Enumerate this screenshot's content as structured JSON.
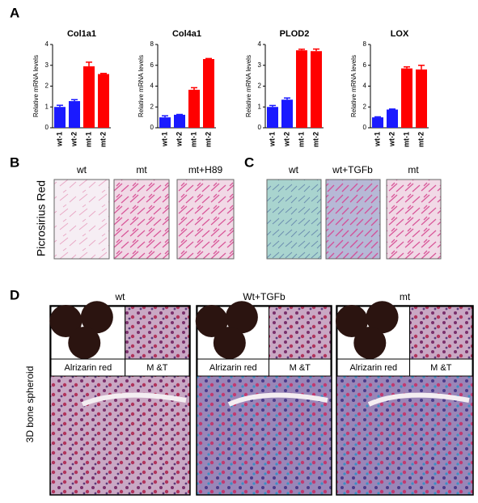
{
  "chart_data": [
    {
      "type": "bar",
      "title": "Col1a1",
      "y_label": "Relative mRNA levels",
      "categories": [
        "wt-1",
        "wt-2",
        "mt-1",
        "mt-2"
      ],
      "values": [
        1.0,
        1.28,
        2.95,
        2.58
      ],
      "errors": [
        0.08,
        0.07,
        0.2,
        0.03
      ],
      "colors": [
        "#1a1aff",
        "#1a1aff",
        "#ff0000",
        "#ff0000"
      ],
      "ylim": [
        0,
        4
      ],
      "yticks": [
        0,
        1,
        2,
        3,
        4
      ]
    },
    {
      "type": "bar",
      "title": "Col4a1",
      "y_label": "Relative mRNA levels",
      "categories": [
        "wt-1",
        "wt-2",
        "mt-1",
        "mt-2"
      ],
      "values": [
        1.0,
        1.25,
        3.65,
        6.6
      ],
      "errors": [
        0.15,
        0.03,
        0.2,
        0.05
      ],
      "colors": [
        "#1a1aff",
        "#1a1aff",
        "#ff0000",
        "#ff0000"
      ],
      "ylim": [
        0,
        8
      ],
      "yticks": [
        0,
        2,
        4,
        6,
        8
      ]
    },
    {
      "type": "bar",
      "title": "PLOD2",
      "y_label": "Relative mRNA levels",
      "categories": [
        "wt-1",
        "wt-2",
        "mt-1",
        "mt-2"
      ],
      "values": [
        1.0,
        1.35,
        3.72,
        3.68
      ],
      "errors": [
        0.07,
        0.08,
        0.05,
        0.1
      ],
      "colors": [
        "#1a1aff",
        "#1a1aff",
        "#ff0000",
        "#ff0000"
      ],
      "ylim": [
        0,
        4
      ],
      "yticks": [
        0,
        1,
        2,
        3,
        4
      ]
    },
    {
      "type": "bar",
      "title": "LOX",
      "y_label": "Relative mRNA levels",
      "categories": [
        "wt-1",
        "wt-2",
        "mt-1",
        "mt-2"
      ],
      "values": [
        1.0,
        1.75,
        5.7,
        5.6
      ],
      "errors": [
        0.05,
        0.05,
        0.15,
        0.4
      ],
      "colors": [
        "#1a1aff",
        "#1a1aff",
        "#ff0000",
        "#ff0000"
      ],
      "ylim": [
        0,
        8
      ],
      "yticks": [
        0,
        2,
        4,
        6,
        8
      ]
    }
  ],
  "panel_labels": [
    "A",
    "B",
    "C",
    "D"
  ],
  "panel_b": {
    "row_label": "Picrosirius Red",
    "columns": [
      "wt",
      "mt",
      "mt+H89"
    ]
  },
  "panel_c": {
    "columns": [
      "wt",
      "wt+TGFb",
      "mt"
    ]
  },
  "panel_d": {
    "row_label": "3D bone spheroid",
    "columns": [
      {
        "title": "wt",
        "inset_left": "Alrizarin red",
        "inset_right": "M &T"
      },
      {
        "title": "Wt+TGFb",
        "inset_left": "Alrizarin red",
        "inset_right": "M &T"
      },
      {
        "title": "mt",
        "inset_left": "Alrizarin red",
        "inset_right": "M &T"
      }
    ]
  }
}
